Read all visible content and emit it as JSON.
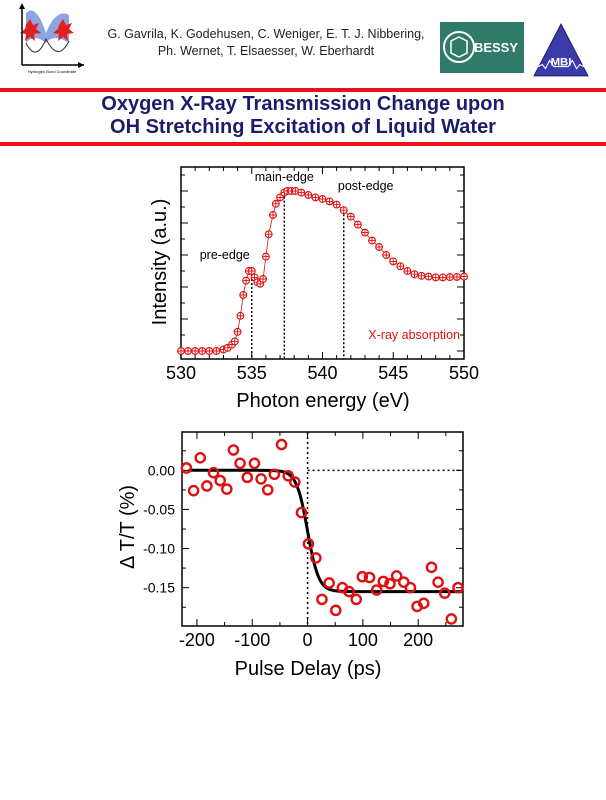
{
  "header": {
    "authors_line1": "G. Gavrila, K. Godehusen, C. Weniger, E. T. J. Nibbering,",
    "authors_line2": "Ph. Wernet, T. Elsaesser, W. Eberhardt",
    "logo_left_caption_x": "Hydrogen Bond Coordinate",
    "logo_left_caption_y": "Potential Energy",
    "logo_bessy": "BESSY",
    "logo_mbi": "MBI",
    "title_line1": "Oxygen X-Ray Transmission Change upon",
    "title_line2": "OH Stretching Excitation of Liquid Water"
  },
  "colors": {
    "accent_red": "#e8101a",
    "title_navy": "#1c1c6b",
    "bessy_green": "#2f7a68",
    "mbi_blue": "#3a3aa8",
    "data_red": "#e01010"
  },
  "chart_data": [
    {
      "type": "scatter",
      "xlabel": "Photon energy (eV)",
      "ylabel": "Intensity (a.u.)",
      "xlim": [
        530,
        550
      ],
      "ylim": [
        -0.05,
        1.15
      ],
      "xticks": [
        "530",
        "535",
        "540",
        "545",
        "550"
      ],
      "y_tick_labels": false,
      "legend": "X-ray absorption",
      "legend_placement": "bottom-right",
      "marker": "circle-plus",
      "annotations": [
        {
          "text": "pre-edge",
          "x": 535.0
        },
        {
          "text": "main-edge",
          "x": 537.3
        },
        {
          "text": "post-edge",
          "x": 541.5
        }
      ],
      "x": [
        530,
        530.5,
        531,
        531.5,
        532,
        532.5,
        533,
        533.3,
        533.6,
        533.8,
        534,
        534.2,
        534.4,
        534.6,
        534.8,
        535,
        535.2,
        535.4,
        535.6,
        535.8,
        536,
        536.2,
        536.5,
        536.7,
        537,
        537.3,
        537.5,
        537.8,
        538.1,
        538.5,
        539,
        539.5,
        540,
        540.5,
        541,
        541.5,
        542,
        542.5,
        543,
        543.5,
        544,
        544.5,
        545,
        545.5,
        546,
        546.5,
        547,
        547.5,
        548,
        548.5,
        549,
        549.5,
        550
      ],
      "y": [
        0,
        0,
        0,
        0,
        0,
        0,
        0.01,
        0.02,
        0.04,
        0.06,
        0.12,
        0.22,
        0.35,
        0.44,
        0.5,
        0.5,
        0.46,
        0.43,
        0.42,
        0.45,
        0.59,
        0.73,
        0.85,
        0.92,
        0.96,
        0.99,
        1.0,
        1.0,
        1.0,
        0.99,
        0.975,
        0.96,
        0.95,
        0.935,
        0.915,
        0.88,
        0.84,
        0.79,
        0.74,
        0.69,
        0.65,
        0.6,
        0.56,
        0.53,
        0.5,
        0.48,
        0.47,
        0.465,
        0.46,
        0.46,
        0.462,
        0.463,
        0.465
      ]
    },
    {
      "type": "scatter",
      "xlabel": "Pulse Delay (ps)",
      "ylabel": "Δ T/T  (%)",
      "xlim": [
        -227,
        281
      ],
      "ylim": [
        -0.199,
        0.049
      ],
      "xticks": [
        "-200",
        "-100",
        "0",
        "100",
        "200"
      ],
      "yticks": [
        "0.00",
        "-0.05",
        "-0.10",
        "-0.15"
      ],
      "marker": "open-circle",
      "fit": {
        "type": "step",
        "y_before": 0.0,
        "y_after": -0.155,
        "center": 0,
        "width": 10
      },
      "x": [
        -219,
        -206,
        -194,
        -182,
        -170,
        -158,
        -146,
        -134,
        -122,
        -109,
        -96,
        -84,
        -72,
        -60,
        -47,
        -35,
        -23,
        -11,
        1.5,
        15,
        26,
        39,
        51,
        63,
        75,
        88,
        99,
        112,
        125,
        137,
        149,
        161,
        174,
        186,
        198,
        210,
        224,
        236,
        248,
        260,
        272
      ],
      "y": [
        0.003,
        -0.026,
        0.016,
        -0.02,
        -0.003,
        -0.013,
        -0.024,
        0.026,
        0.009,
        -0.009,
        0.009,
        -0.011,
        -0.025,
        -0.005,
        0.033,
        -0.007,
        -0.015,
        -0.054,
        -0.094,
        -0.112,
        -0.165,
        -0.144,
        -0.179,
        -0.15,
        -0.155,
        -0.165,
        -0.136,
        -0.137,
        -0.153,
        -0.142,
        -0.145,
        -0.135,
        -0.143,
        -0.15,
        -0.174,
        -0.17,
        -0.124,
        -0.143,
        -0.157,
        -0.19,
        -0.15
      ]
    }
  ]
}
